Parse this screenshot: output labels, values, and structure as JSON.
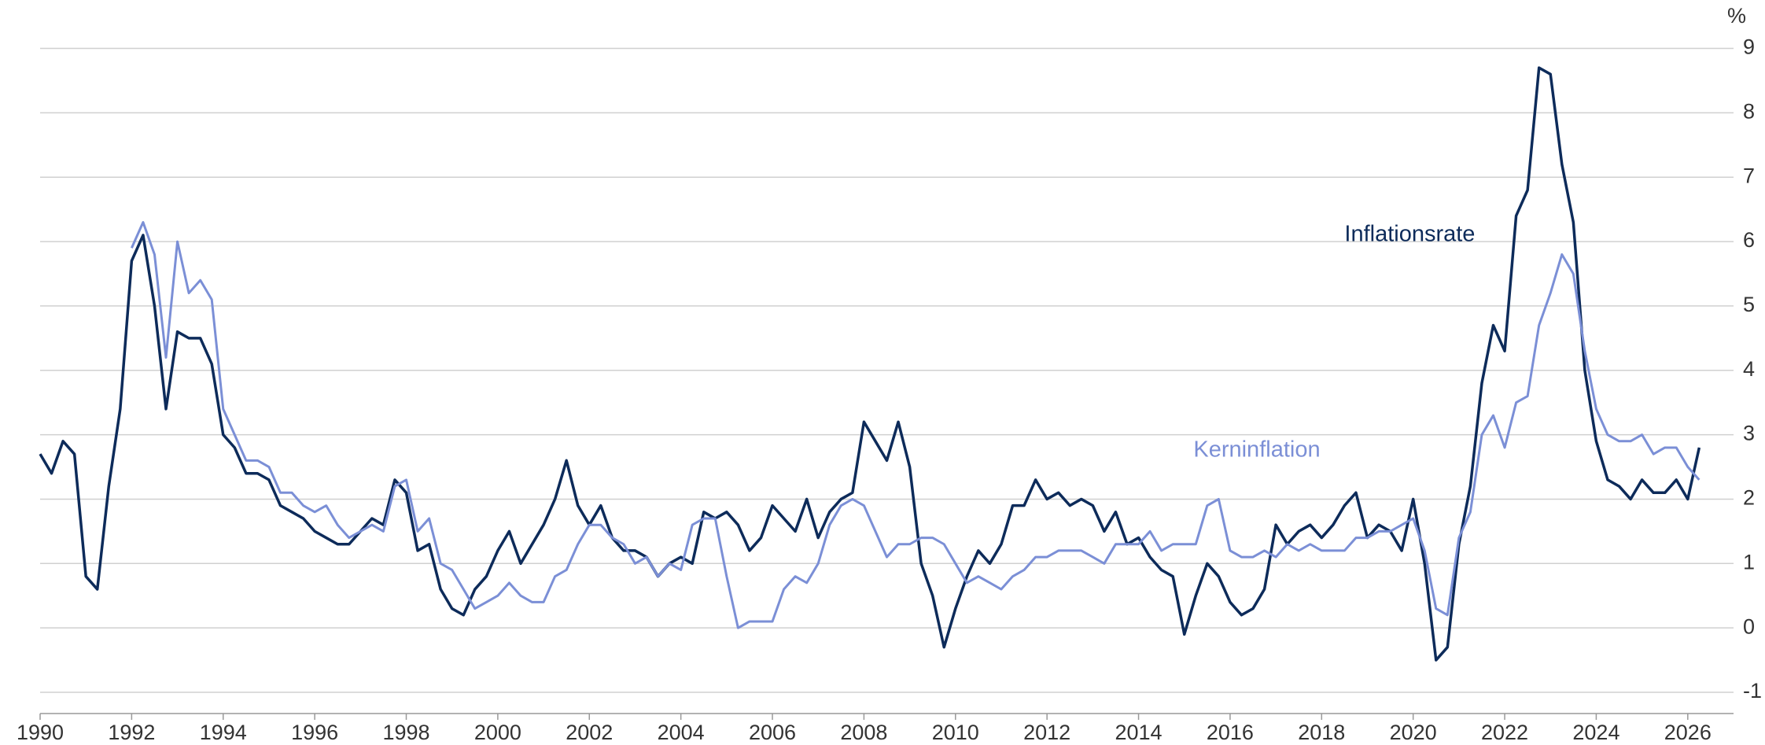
{
  "chart_data": {
    "type": "line",
    "ylabel": "%",
    "annotations": [
      {
        "text": "Inflationsrate",
        "x": 2018.5,
        "y": 6.1
      },
      {
        "text": "Kerninflation",
        "x": 2015.2,
        "y": 2.75
      }
    ],
    "x": [
      1990,
      1990.25,
      1990.5,
      1990.75,
      1991,
      1991.25,
      1991.5,
      1991.75,
      1992,
      1992.25,
      1992.5,
      1992.75,
      1993,
      1993.25,
      1993.5,
      1993.75,
      1994,
      1994.25,
      1994.5,
      1994.75,
      1995,
      1995.25,
      1995.5,
      1995.75,
      1996,
      1996.25,
      1996.5,
      1996.75,
      1997,
      1997.25,
      1997.5,
      1997.75,
      1998,
      1998.25,
      1998.5,
      1998.75,
      1999,
      1999.25,
      1999.5,
      1999.75,
      2000,
      2000.25,
      2000.5,
      2000.75,
      2001,
      2001.25,
      2001.5,
      2001.75,
      2002,
      2002.25,
      2002.5,
      2002.75,
      2003,
      2003.25,
      2003.5,
      2003.75,
      2004,
      2004.25,
      2004.5,
      2004.75,
      2005,
      2005.25,
      2005.5,
      2005.75,
      2006,
      2006.25,
      2006.5,
      2006.75,
      2007,
      2007.25,
      2007.5,
      2007.75,
      2008,
      2008.25,
      2008.5,
      2008.75,
      2009,
      2009.25,
      2009.5,
      2009.75,
      2010,
      2010.25,
      2010.5,
      2010.75,
      2011,
      2011.25,
      2011.5,
      2011.75,
      2012,
      2012.25,
      2012.5,
      2012.75,
      2013,
      2013.25,
      2013.5,
      2013.75,
      2014,
      2014.25,
      2014.5,
      2014.75,
      2015,
      2015.25,
      2015.5,
      2015.75,
      2016,
      2016.25,
      2016.5,
      2016.75,
      2017,
      2017.25,
      2017.5,
      2017.75,
      2018,
      2018.25,
      2018.5,
      2018.75,
      2019,
      2019.25,
      2019.5,
      2019.75,
      2020,
      2020.25,
      2020.5,
      2020.75,
      2021,
      2021.25,
      2021.5,
      2021.75,
      2022,
      2022.25,
      2022.5,
      2022.75,
      2023,
      2023.25,
      2023.5,
      2023.75,
      2024,
      2024.25,
      2024.5,
      2024.75,
      2025,
      2025.25,
      2025.5,
      2025.75,
      2026,
      2026.25
    ],
    "series": [
      {
        "name": "Inflationsrate",
        "color": "#0d2b5a",
        "values": [
          2.7,
          2.4,
          2.9,
          2.7,
          0.8,
          0.6,
          2.2,
          3.4,
          5.7,
          6.1,
          5.0,
          3.4,
          4.6,
          4.5,
          4.5,
          4.1,
          3.0,
          2.8,
          2.4,
          2.4,
          2.3,
          1.9,
          1.8,
          1.7,
          1.5,
          1.4,
          1.3,
          1.3,
          1.5,
          1.7,
          1.6,
          2.3,
          2.1,
          1.2,
          1.3,
          0.6,
          0.3,
          0.2,
          0.6,
          0.8,
          1.2,
          1.5,
          1.0,
          1.3,
          1.6,
          2.0,
          2.6,
          1.9,
          1.6,
          1.9,
          1.4,
          1.2,
          1.2,
          1.1,
          0.8,
          1.0,
          1.1,
          1.0,
          1.8,
          1.7,
          1.8,
          1.6,
          1.2,
          1.4,
          1.9,
          1.7,
          1.5,
          2.0,
          1.4,
          1.8,
          2.0,
          2.1,
          3.2,
          2.9,
          2.6,
          3.2,
          2.5,
          1.0,
          0.5,
          -0.3,
          0.3,
          0.8,
          1.2,
          1.0,
          1.3,
          1.9,
          1.9,
          2.3,
          2.0,
          2.1,
          1.9,
          2.0,
          1.9,
          1.5,
          1.8,
          1.3,
          1.4,
          1.1,
          0.9,
          0.8,
          -0.1,
          0.5,
          1.0,
          0.8,
          0.4,
          0.2,
          0.3,
          0.6,
          1.6,
          1.3,
          1.5,
          1.6,
          1.4,
          1.6,
          1.9,
          2.1,
          1.4,
          1.6,
          1.5,
          1.2,
          2.0,
          1.0,
          -0.5,
          -0.3,
          1.3,
          2.2,
          3.8,
          4.7,
          4.3,
          6.4,
          6.8,
          8.7,
          8.6,
          7.2,
          6.3,
          4.0,
          2.9,
          2.3,
          2.2,
          2.0,
          2.3,
          2.1,
          2.1,
          2.3,
          2.0,
          2.8
        ]
      },
      {
        "name": "Kerninflation",
        "color": "#7b8fd6",
        "values": [
          null,
          null,
          null,
          null,
          null,
          null,
          null,
          null,
          5.9,
          6.3,
          5.8,
          4.2,
          6.0,
          5.2,
          5.4,
          5.1,
          3.4,
          3.0,
          2.6,
          2.6,
          2.5,
          2.1,
          2.1,
          1.9,
          1.8,
          1.9,
          1.6,
          1.4,
          1.5,
          1.6,
          1.5,
          2.2,
          2.3,
          1.5,
          1.7,
          1.0,
          0.9,
          0.6,
          0.3,
          0.4,
          0.5,
          0.7,
          0.5,
          0.4,
          0.4,
          0.8,
          0.9,
          1.3,
          1.6,
          1.6,
          1.4,
          1.3,
          1.0,
          1.1,
          0.8,
          1.0,
          0.9,
          1.6,
          1.7,
          1.7,
          0.8,
          0.0,
          0.1,
          0.1,
          0.1,
          0.6,
          0.8,
          0.7,
          1.0,
          1.6,
          1.9,
          2.0,
          1.9,
          1.5,
          1.1,
          1.3,
          1.3,
          1.4,
          1.4,
          1.3,
          1.0,
          0.7,
          0.8,
          0.7,
          0.6,
          0.8,
          0.9,
          1.1,
          1.1,
          1.2,
          1.2,
          1.2,
          1.1,
          1.0,
          1.3,
          1.3,
          1.3,
          1.5,
          1.2,
          1.3,
          1.3,
          1.3,
          1.9,
          2.0,
          1.2,
          1.1,
          1.1,
          1.2,
          1.1,
          1.3,
          1.2,
          1.3,
          1.2,
          1.2,
          1.2,
          1.4,
          1.4,
          1.5,
          1.5,
          1.6,
          1.7,
          1.2,
          0.3,
          0.2,
          1.4,
          1.8,
          3.0,
          3.3,
          2.8,
          3.5,
          3.6,
          4.7,
          5.2,
          5.8,
          5.5,
          4.3,
          3.4,
          3.0,
          2.9,
          2.9,
          3.0,
          2.7,
          2.8,
          2.8,
          2.5,
          2.3
        ]
      }
    ],
    "xlim": [
      1990,
      2027
    ],
    "xticks": [
      1990,
      1992,
      1994,
      1996,
      1998,
      2000,
      2002,
      2004,
      2006,
      2008,
      2010,
      2012,
      2014,
      2016,
      2018,
      2020,
      2022,
      2024,
      2026
    ],
    "ylim": [
      -1.33,
      9.3
    ],
    "yticks": [
      -1,
      0,
      1,
      2,
      3,
      4,
      5,
      6,
      7,
      8,
      9
    ],
    "grid": true
  }
}
